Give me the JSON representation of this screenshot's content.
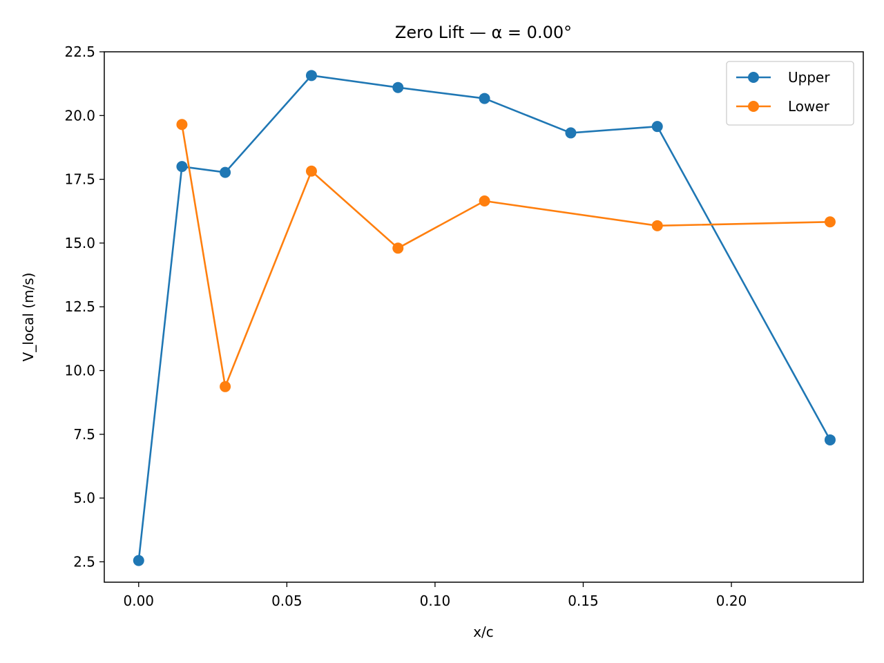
{
  "chart_data": {
    "type": "line",
    "title": "Zero Lift — α = 0.00°",
    "xlabel": "x/c",
    "ylabel": "V_local (m/s)",
    "xlim": [
      -0.0116,
      0.2445
    ],
    "ylim": [
      1.7,
      22.5
    ],
    "xticks": [
      0.0,
      0.05,
      0.1,
      0.15,
      0.2
    ],
    "xtick_labels": [
      "0.00",
      "0.05",
      "0.10",
      "0.15",
      "0.20"
    ],
    "yticks": [
      2.5,
      5.0,
      7.5,
      10.0,
      12.5,
      15.0,
      17.5,
      20.0,
      22.5
    ],
    "ytick_labels": [
      "2.5",
      "5.0",
      "7.5",
      "10.0",
      "12.5",
      "15.0",
      "17.5",
      "20.0",
      "22.5"
    ],
    "grid": false,
    "legend_position": "top-right",
    "series": [
      {
        "name": "Upper",
        "color": "#1f77b4",
        "marker": "circle",
        "x": [
          0.0,
          0.0146,
          0.0292,
          0.0583,
          0.0875,
          0.1167,
          0.1458,
          0.175,
          0.2333
        ],
        "y": [
          2.55,
          18.0,
          17.77,
          21.57,
          21.1,
          20.67,
          19.32,
          19.57,
          7.28
        ]
      },
      {
        "name": "Lower",
        "color": "#ff7f0e",
        "marker": "circle",
        "x": [
          0.0146,
          0.0292,
          0.0583,
          0.0875,
          0.1167,
          0.175,
          0.2333
        ],
        "y": [
          19.65,
          9.37,
          17.82,
          14.8,
          16.65,
          15.68,
          15.83
        ]
      }
    ]
  }
}
